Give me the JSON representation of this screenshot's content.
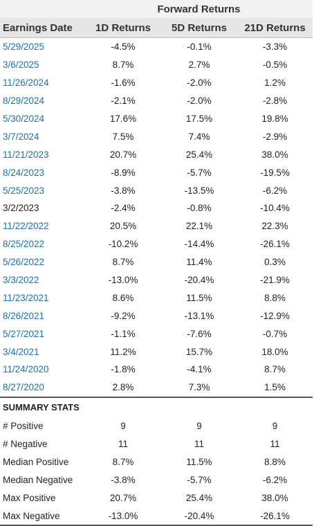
{
  "header": {
    "group_label": "Forward Returns",
    "columns": [
      "Earnings Date",
      "1D Returns",
      "5D Returns",
      "21D Returns"
    ]
  },
  "rows": [
    {
      "date": "5/29/2025",
      "d1": "-4.5%",
      "d5": "-0.1%",
      "d21": "-3.3%",
      "link": true
    },
    {
      "date": "3/6/2025",
      "d1": "8.7%",
      "d5": "2.7%",
      "d21": "-0.5%",
      "link": true
    },
    {
      "date": "11/26/2024",
      "d1": "-1.6%",
      "d5": "-2.0%",
      "d21": "1.2%",
      "link": true
    },
    {
      "date": "8/29/2024",
      "d1": "-2.1%",
      "d5": "-2.0%",
      "d21": "-2.8%",
      "link": true
    },
    {
      "date": "5/30/2024",
      "d1": "17.6%",
      "d5": "17.5%",
      "d21": "19.8%",
      "link": true
    },
    {
      "date": "3/7/2024",
      "d1": "7.5%",
      "d5": "7.4%",
      "d21": "-2.9%",
      "link": true
    },
    {
      "date": "11/21/2023",
      "d1": "20.7%",
      "d5": "25.4%",
      "d21": "38.0%",
      "link": true
    },
    {
      "date": "8/24/2023",
      "d1": "-8.9%",
      "d5": "-5.7%",
      "d21": "-19.5%",
      "link": true
    },
    {
      "date": "5/25/2023",
      "d1": "-3.8%",
      "d5": "-13.5%",
      "d21": "-6.2%",
      "link": true
    },
    {
      "date": "3/2/2023",
      "d1": "-2.4%",
      "d5": "-0.8%",
      "d21": "-10.4%",
      "link": false
    },
    {
      "date": "11/22/2022",
      "d1": "20.5%",
      "d5": "22.1%",
      "d21": "22.3%",
      "link": true
    },
    {
      "date": "8/25/2022",
      "d1": "-10.2%",
      "d5": "-14.4%",
      "d21": "-26.1%",
      "link": true
    },
    {
      "date": "5/26/2022",
      "d1": "8.7%",
      "d5": "11.4%",
      "d21": "0.3%",
      "link": true
    },
    {
      "date": "3/3/2022",
      "d1": "-13.0%",
      "d5": "-20.4%",
      "d21": "-21.9%",
      "link": true
    },
    {
      "date": "11/23/2021",
      "d1": "8.6%",
      "d5": "11.5%",
      "d21": "8.8%",
      "link": true
    },
    {
      "date": "8/26/2021",
      "d1": "-9.2%",
      "d5": "-13.1%",
      "d21": "-12.9%",
      "link": true
    },
    {
      "date": "5/27/2021",
      "d1": "-1.1%",
      "d5": "-7.6%",
      "d21": "-0.7%",
      "link": true
    },
    {
      "date": "3/4/2021",
      "d1": "11.2%",
      "d5": "15.7%",
      "d21": "18.0%",
      "link": true
    },
    {
      "date": "11/24/2020",
      "d1": "-1.8%",
      "d5": "-4.1%",
      "d21": "8.7%",
      "link": true
    },
    {
      "date": "8/27/2020",
      "d1": "2.8%",
      "d5": "7.3%",
      "d21": "1.5%",
      "link": true
    }
  ],
  "summary": {
    "title": "SUMMARY STATS",
    "rows": [
      {
        "label": "# Positive",
        "d1": "9",
        "d5": "9",
        "d21": "9"
      },
      {
        "label": "# Negative",
        "d1": "11",
        "d5": "11",
        "d21": "11"
      },
      {
        "label": "Median Positive",
        "d1": "8.7%",
        "d5": "11.5%",
        "d21": "8.8%"
      },
      {
        "label": "Median Negative",
        "d1": "-3.8%",
        "d5": "-5.7%",
        "d21": "-6.2%"
      },
      {
        "label": "Max Positive",
        "d1": "20.7%",
        "d5": "25.4%",
        "d21": "38.0%"
      },
      {
        "label": "Max Negative",
        "d1": "-13.0%",
        "d5": "-20.4%",
        "d21": "-26.1%"
      }
    ]
  },
  "colors": {
    "link": "#1a6fb5",
    "header_bg": "#e6e6e6"
  }
}
